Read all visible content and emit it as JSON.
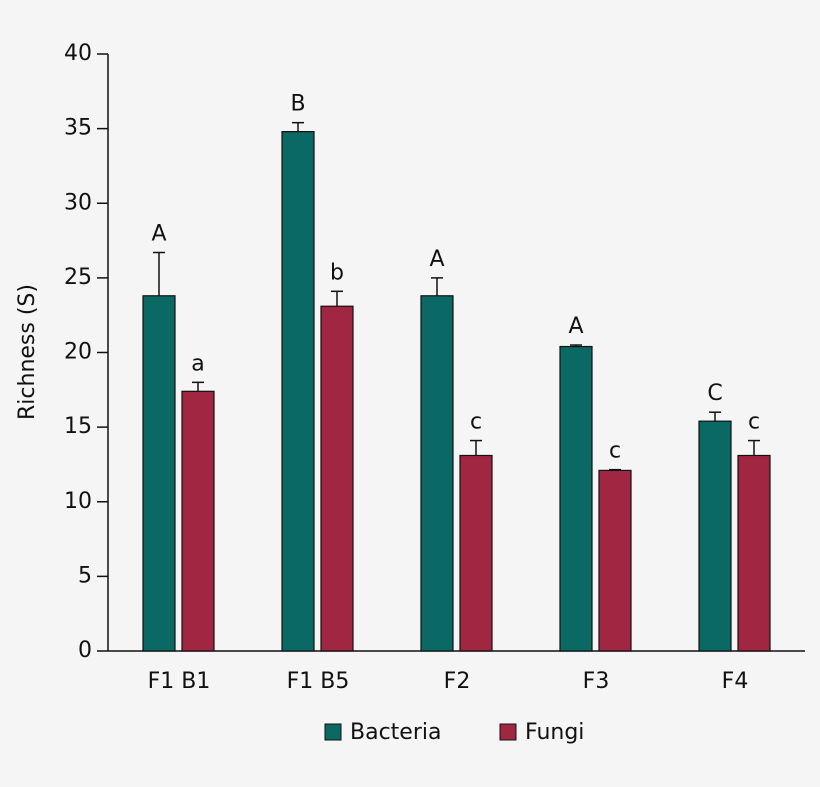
{
  "chart_data": {
    "type": "bar",
    "y_label": "Richness (S)",
    "categories": [
      "F1 B1",
      "F1 B5",
      "F2",
      "F3",
      "F4"
    ],
    "series": [
      {
        "name": "Bacteria",
        "color": "#0a6964",
        "values": [
          23.8,
          34.8,
          23.8,
          20.4,
          15.4
        ],
        "errors": [
          2.9,
          0.6,
          1.2,
          0.1,
          0.6
        ],
        "labels": [
          "A",
          "B",
          "A",
          "A",
          "C"
        ]
      },
      {
        "name": "Fungi",
        "color": "#a02642",
        "values": [
          17.4,
          23.1,
          13.1,
          12.1,
          13.1
        ],
        "errors": [
          0.6,
          1.0,
          1.0,
          0.05,
          1.0
        ],
        "labels": [
          "a",
          "b",
          "c",
          "c",
          "c"
        ]
      }
    ],
    "ylim": [
      0,
      40
    ],
    "yticks": [
      0,
      5,
      10,
      15,
      20,
      25,
      30,
      35,
      40
    ],
    "legend": "bottom"
  }
}
